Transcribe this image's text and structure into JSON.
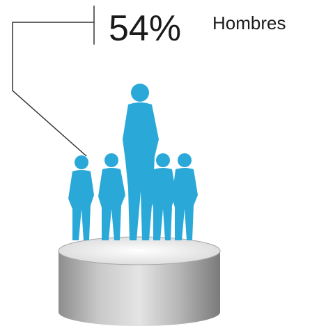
{
  "callout": {
    "value_label": "54%",
    "label": "Hombres"
  }
}
